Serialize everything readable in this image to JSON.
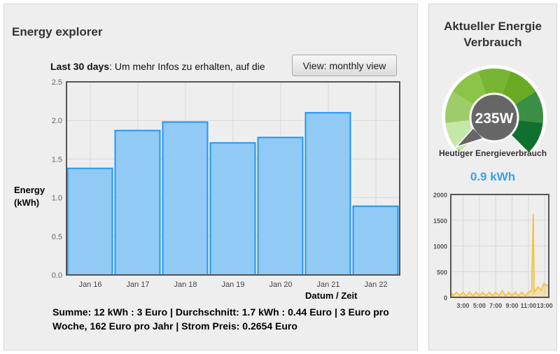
{
  "explorer": {
    "title": "Energy explorer",
    "info_bold": "Last 30 days",
    "info_text": ": Um mehr Infos zu erhalten, auf die",
    "view_button": "View: monthly view",
    "summary": "Summe: 12 kWh : 3 Euro | Durchschnitt: 1.7 kWh : 0.44 Euro | 3 Euro pro Woche, 162 Euro pro Jahr | Strom Preis: 0.2654 Euro"
  },
  "current": {
    "title": "Aktueller Energie Verbrauch",
    "power": "235W",
    "today_label": "Heutiger Energieverbrauch",
    "today_value": "0.9 kWh"
  },
  "chart_data": [
    {
      "type": "bar",
      "categories": [
        "Jan 16",
        "Jan 17",
        "Jan 18",
        "Jan 19",
        "Jan 20",
        "Jan 21",
        "Jan 22"
      ],
      "values": [
        1.38,
        1.87,
        1.98,
        1.71,
        1.78,
        2.1,
        0.89
      ],
      "ylabel": "Energy (kWh)",
      "xlabel": "Datum / Zeit",
      "ylim": [
        0,
        2.5
      ],
      "yticks": [
        "0.0",
        "0.5",
        "1.0",
        "1.5",
        "2.0",
        "2.5"
      ],
      "grid": true,
      "color": "#90caf5"
    },
    {
      "type": "area",
      "xlabel": "",
      "ylabel": "",
      "ylim": [
        0,
        2000
      ],
      "yticks": [
        "0",
        "500",
        "1000",
        "1500",
        "2000"
      ],
      "xticks": [
        "3:00",
        "5:00",
        "7:00",
        "9:00",
        "11:00",
        "13:00"
      ],
      "xrange": [
        1.5,
        13.5
      ],
      "x": [
        1.5,
        1.8,
        2.2,
        2.6,
        3,
        3.4,
        3.8,
        4.2,
        4.6,
        5,
        5.4,
        5.8,
        6.2,
        6.6,
        7,
        7.4,
        7.8,
        8.2,
        8.6,
        9,
        9.4,
        9.8,
        10.2,
        10.6,
        11,
        11.4,
        11.6,
        11.7,
        11.8,
        12.2,
        12.6,
        12.9,
        13.2,
        13.5
      ],
      "y": [
        100,
        30,
        100,
        30,
        100,
        30,
        100,
        30,
        100,
        30,
        100,
        30,
        100,
        30,
        100,
        30,
        130,
        30,
        100,
        30,
        100,
        30,
        100,
        30,
        100,
        130,
        1620,
        100,
        120,
        200,
        140,
        270,
        230,
        250
      ],
      "color": "#f5c242"
    }
  ]
}
